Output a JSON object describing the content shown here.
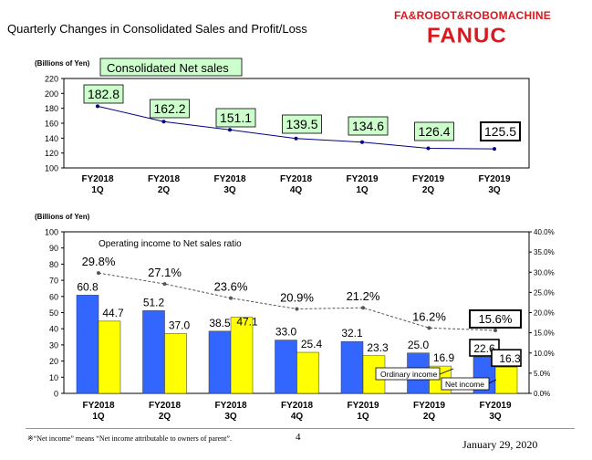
{
  "header": {
    "title": "Quarterly Changes in Consolidated Sales and Profit/Loss",
    "brand_tagline": "FA&ROBOT&ROBOMACHINE",
    "brand_logo": "FANUC"
  },
  "footer": {
    "footnote": "※“Net income” means “Net income attributable to owners of parent”.",
    "page_number": "4",
    "date": "January 29, 2020"
  },
  "colors": {
    "label_box_fill": "#ccffcc",
    "ordinary_income": "#3366ff",
    "net_income": "#ffff00",
    "line": "#000080"
  },
  "chart_data": [
    {
      "type": "line",
      "title": "Consolidated Net sales",
      "ylabel": "(Billions of Yen)",
      "categories": [
        "FY2018\n1Q",
        "FY2018\n2Q",
        "FY2018\n3Q",
        "FY2018\n4Q",
        "FY2019\n1Q",
        "FY2019\n2Q",
        "FY2019\n3Q"
      ],
      "values": [
        182.8,
        162.2,
        151.1,
        139.5,
        134.6,
        126.4,
        125.5
      ],
      "value_labels": [
        "182.8",
        "162.2",
        "151.1",
        "139.5",
        "134.6",
        "126.4",
        "125.5"
      ],
      "ylim": [
        100,
        220
      ],
      "yticks": [
        "100",
        "120",
        "140",
        "160",
        "180",
        "200",
        "220"
      ]
    },
    {
      "type": "bar",
      "ylabel": "(Billions of Yen)",
      "categories": [
        "FY2018\n1Q",
        "FY2018\n2Q",
        "FY2018\n3Q",
        "FY2018\n4Q",
        "FY2019\n1Q",
        "FY2019\n2Q",
        "FY2019\n3Q"
      ],
      "series": [
        {
          "name": "Ordinary income",
          "values": [
            60.8,
            51.2,
            38.5,
            33.0,
            32.1,
            25.0,
            22.6
          ],
          "labels": [
            "60.8",
            "51.2",
            "38.5",
            "33.0",
            "32.1",
            "25.0",
            "22.6"
          ]
        },
        {
          "name": "Net income",
          "values": [
            44.7,
            37.0,
            47.1,
            25.4,
            23.3,
            16.9,
            16.3
          ],
          "labels": [
            "44.7",
            "37.0",
            "47.1",
            "25.4",
            "23.3",
            "16.9",
            "16.3"
          ]
        }
      ],
      "line_series": {
        "name": "Operating income to Net sales ratio",
        "values": [
          29.8,
          27.1,
          23.6,
          20.9,
          21.2,
          16.2,
          15.6
        ],
        "labels": [
          "29.8%",
          "27.1%",
          "23.6%",
          "20.9%",
          "21.2%",
          "16.2%",
          "15.6%"
        ]
      },
      "ylim": [
        0,
        100
      ],
      "yticks": [
        "0",
        "10",
        "20",
        "30",
        "40",
        "50",
        "60",
        "70",
        "80",
        "90",
        "100"
      ],
      "y2lim": [
        0,
        40
      ],
      "y2ticks": [
        "0.0%",
        "5.0%",
        "10.0%",
        "15.0%",
        "20.0%",
        "25.0%",
        "30.0%",
        "35.0%",
        "40.0%"
      ]
    }
  ]
}
